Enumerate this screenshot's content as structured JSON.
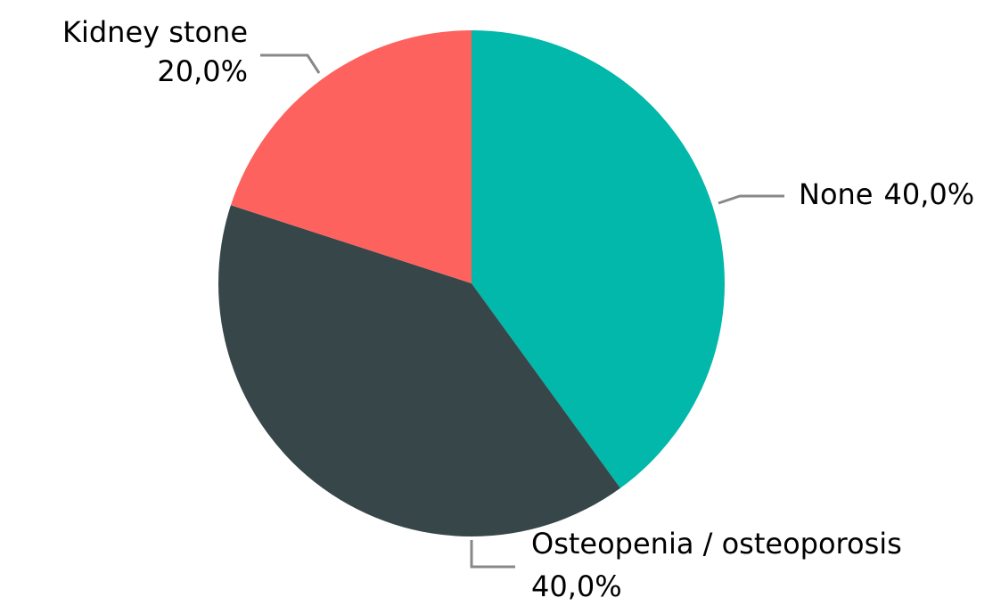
{
  "chart_data": {
    "type": "pie",
    "categories": [
      "None",
      "Osteopenia / osteoporosis",
      "Kidney stone"
    ],
    "values": [
      40,
      40,
      20
    ],
    "value_labels": [
      "40,0%",
      "40,0%",
      "20,0%"
    ],
    "colors": [
      "#01b8aa",
      "#374649",
      "#fd625e"
    ]
  }
}
